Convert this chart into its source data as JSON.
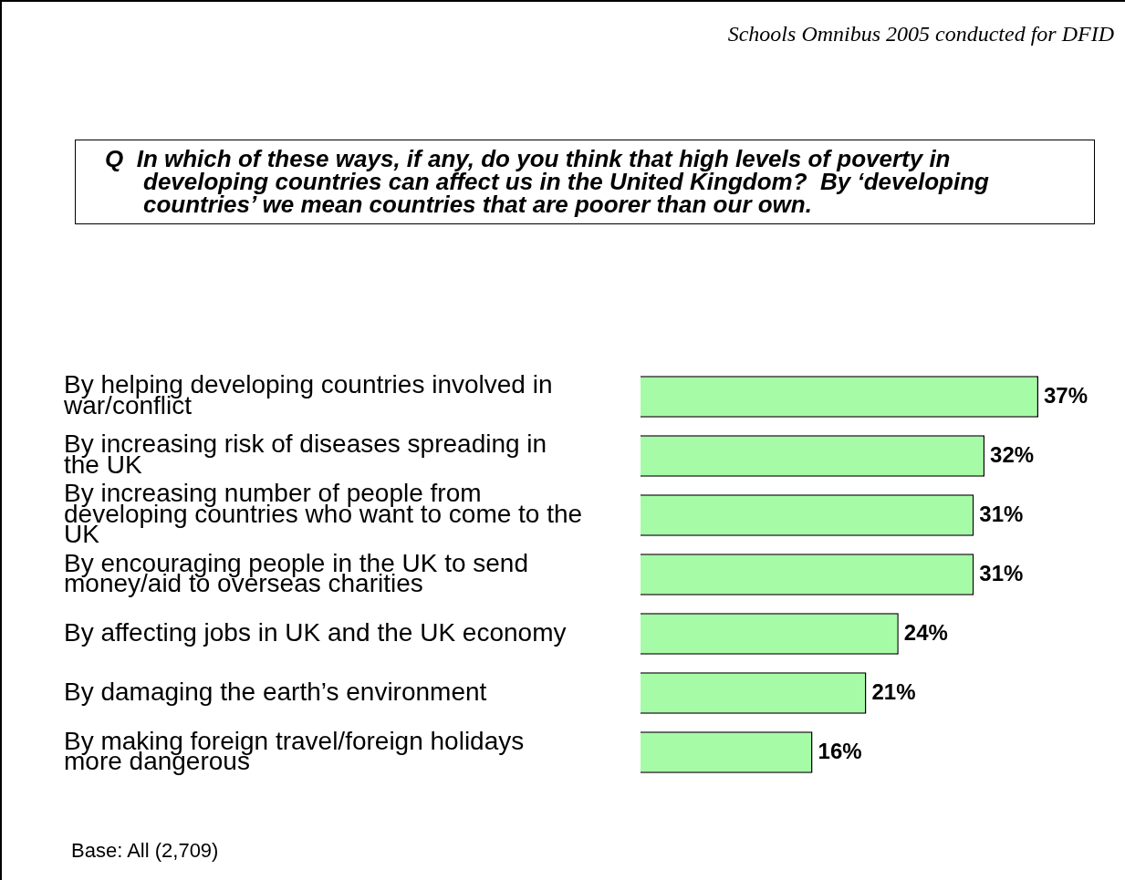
{
  "chart_data": {
    "type": "bar",
    "orientation": "horizontal",
    "title": "Q  In which of these ways, if any, do you think that high levels of poverty in developing countries can affect us in the United Kingdom?  By ‘developing countries’ we mean countries that are poorer than our own.",
    "annotations": [
      "Schools Omnibus 2005 conducted for DFID",
      "Base:  All (2,709)"
    ],
    "categories": [
      "By helping developing countries involved in war/conflict",
      "By increasing risk of diseases spreading in the UK",
      "By increasing number of people from developing countries who want to come to the UK",
      "By encouraging people in the UK to send money/aid to overseas charities",
      "By affecting jobs in UK and the UK economy",
      "By damaging the earth’s environment",
      "By making foreign travel/foreign holidays more dangerous"
    ],
    "values": [
      37,
      32,
      31,
      31,
      24,
      21,
      16
    ],
    "color": "#a6fca6",
    "data_labels": true,
    "value_labels": [
      "37%",
      "32%",
      "31%",
      "31%",
      "24%",
      "21%",
      "16%"
    ]
  }
}
